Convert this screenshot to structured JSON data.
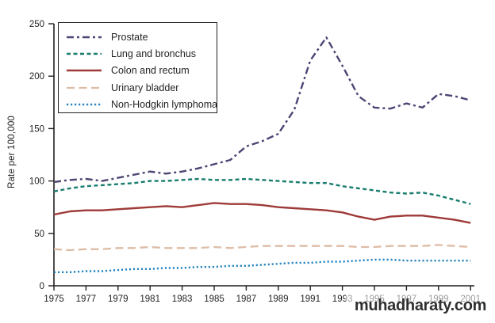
{
  "watermark": {
    "text": "muhadharaty.com"
  },
  "chart_data": {
    "type": "line",
    "title": "",
    "ylabel": "Rate per 100,000",
    "xlabel": "",
    "ylim": [
      0,
      250
    ],
    "yticks": [
      0,
      50,
      100,
      150,
      200,
      250
    ],
    "xticks": [
      1975,
      1977,
      1979,
      1981,
      1983,
      1985,
      1987,
      1989,
      1991,
      1993,
      1995,
      1997,
      1999,
      2001
    ],
    "x": [
      1975,
      1976,
      1977,
      1978,
      1979,
      1980,
      1981,
      1982,
      1983,
      1984,
      1985,
      1986,
      1987,
      1988,
      1989,
      1990,
      1991,
      1992,
      1993,
      1994,
      1995,
      1996,
      1997,
      1998,
      1999,
      2000,
      2001
    ],
    "grid": false,
    "legend_position": "top-left",
    "axis_color": "#231f20",
    "series": [
      {
        "name": "Prostate",
        "color": "#4f4474",
        "dash": "9 4 3 4",
        "width": 2.4,
        "values": [
          99,
          101,
          102,
          100,
          103,
          106,
          109,
          107,
          109,
          112,
          116,
          120,
          133,
          138,
          145,
          168,
          215,
          237,
          210,
          181,
          170,
          169,
          174,
          170,
          183,
          181,
          177
        ]
      },
      {
        "name": "Lung and bronchus",
        "color": "#177d6e",
        "dash": "5 3.5",
        "width": 2.4,
        "values": [
          90,
          93,
          95,
          96,
          97,
          98,
          100,
          100,
          101,
          102,
          101,
          101,
          102,
          101,
          100,
          99,
          98,
          98,
          95,
          93,
          91,
          89,
          88,
          89,
          86,
          82,
          78
        ]
      },
      {
        "name": "Colon and rectum",
        "color": "#9e3a37",
        "dash": "",
        "width": 2.4,
        "values": [
          68,
          71,
          72,
          72,
          73,
          74,
          75,
          76,
          75,
          77,
          79,
          78,
          78,
          77,
          75,
          74,
          73,
          72,
          70,
          66,
          63,
          66,
          67,
          67,
          65,
          63,
          60
        ]
      },
      {
        "name": "Urinary bladder",
        "color": "#ddbca6",
        "dash": "10 5.5",
        "width": 2.3,
        "values": [
          35,
          34,
          35,
          35,
          36,
          36,
          37,
          36,
          36,
          36,
          37,
          36,
          37,
          38,
          38,
          38,
          38,
          38,
          38,
          37,
          37,
          38,
          38,
          38,
          39,
          38,
          37
        ]
      },
      {
        "name": "Non-Hodgkin lymphoma",
        "color": "#2585c0",
        "dash": "2.2 2.8",
        "width": 2.4,
        "values": [
          13,
          13,
          14,
          14,
          15,
          16,
          16,
          17,
          17,
          18,
          18,
          19,
          19,
          20,
          21,
          22,
          22,
          23,
          23,
          24,
          25,
          25,
          24,
          24,
          24,
          24,
          24
        ]
      }
    ]
  }
}
